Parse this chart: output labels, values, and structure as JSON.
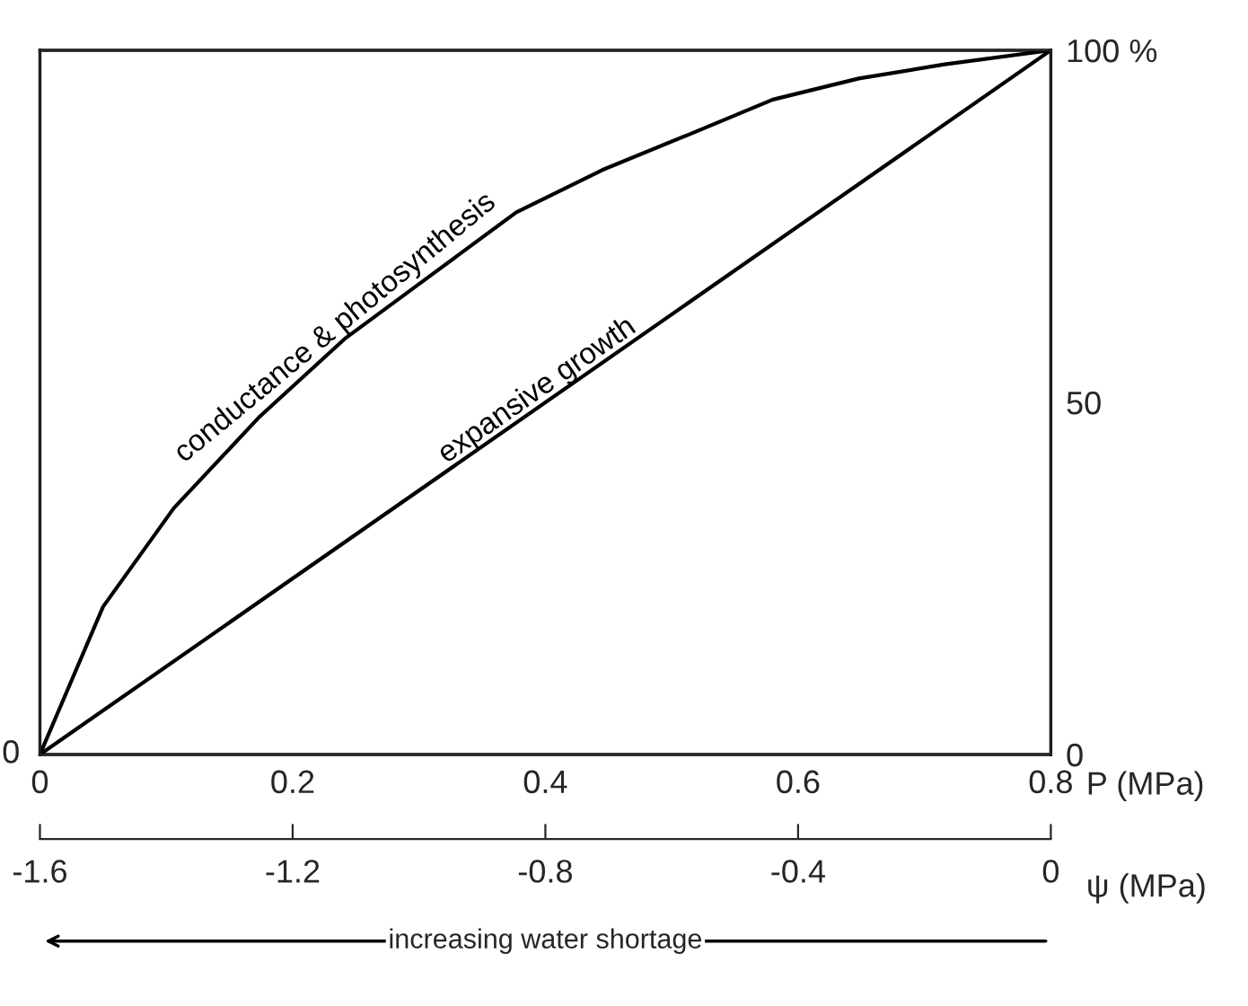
{
  "chart_data": {
    "type": "line",
    "x": [
      0,
      0.05,
      0.106,
      0.174,
      0.241,
      0.309,
      0.377,
      0.445,
      0.513,
      0.58,
      0.648,
      0.716,
      0.8
    ],
    "series": [
      {
        "name": "conductance & photosynthesis",
        "color": "#000000",
        "axis": "y2",
        "values": [
          0,
          21,
          35,
          48,
          59,
          68,
          77,
          83,
          88,
          93,
          96,
          98,
          100
        ]
      },
      {
        "name": "expansive growth",
        "color": "#000000",
        "axis": "y2",
        "x": [
          0,
          0.8
        ],
        "values": [
          0,
          100
        ]
      }
    ],
    "xlabel": "P (MPa)",
    "xlim": [
      0,
      0.8
    ],
    "xticks": [
      0,
      0.2,
      0.4,
      0.6,
      0.8
    ],
    "y2lim": [
      0,
      100
    ],
    "y2ticks": [
      0,
      50,
      {
        "value": 100,
        "label": "100 %"
      }
    ],
    "x2label": "ψ (MPa)",
    "x2lim": [
      -1.6,
      0
    ],
    "x2ticks": [
      -1.6,
      -1.2,
      -0.8,
      -0.4,
      0
    ],
    "annotations": [
      "0",
      "increasing water shortage"
    ],
    "grid": false,
    "marker": "none",
    "line_style": "solid"
  }
}
